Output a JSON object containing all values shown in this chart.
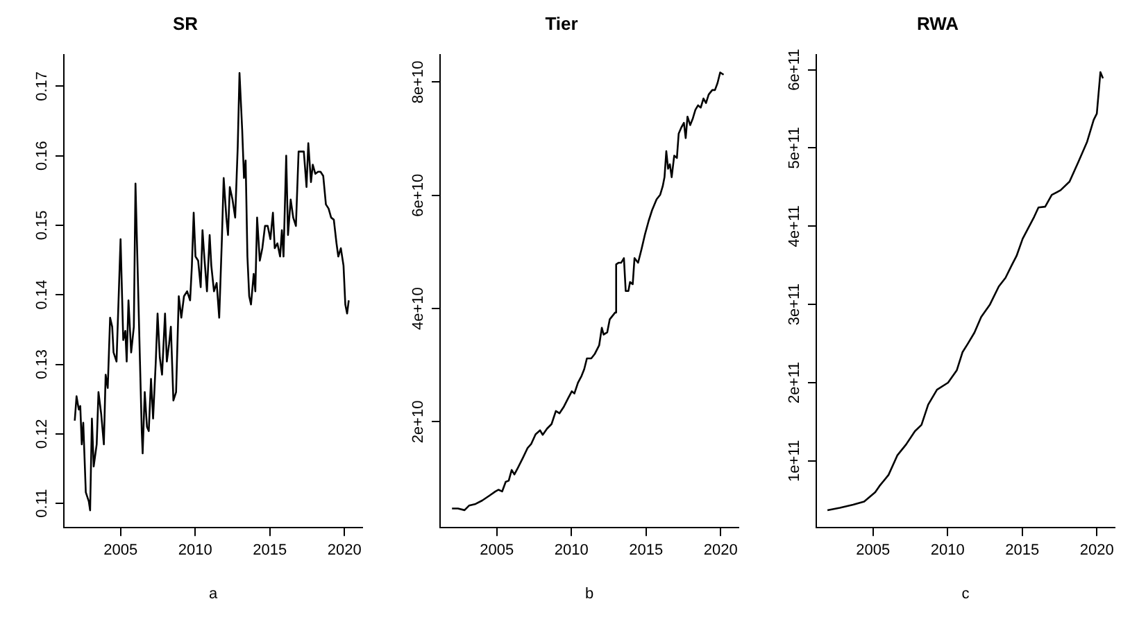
{
  "chart_data": [
    {
      "type": "line",
      "title": "SR",
      "xlabel": "a",
      "color": "#000000",
      "xlim": [
        2001.2,
        2021.2
      ],
      "xticks": [
        2005,
        2010,
        2015,
        2020
      ],
      "ylim": [
        0.1065,
        0.1745
      ],
      "yticks": [
        0.11,
        0.12,
        0.13,
        0.14,
        0.15,
        0.16,
        0.17
      ],
      "x": [
        2001.93,
        2002.05,
        2002.2,
        2002.3,
        2002.4,
        2002.5,
        2002.67,
        2002.87,
        2002.96,
        2003.08,
        2003.2,
        2003.4,
        2003.52,
        2003.7,
        2003.88,
        2004.0,
        2004.14,
        2004.3,
        2004.44,
        2004.53,
        2004.73,
        2005.0,
        2005.18,
        2005.32,
        2005.41,
        2005.53,
        2005.71,
        2005.89,
        2006.0,
        2006.3,
        2006.42,
        2006.48,
        2006.62,
        2006.77,
        2006.89,
        2007.04,
        2007.18,
        2007.36,
        2007.48,
        2007.63,
        2007.78,
        2007.98,
        2008.1,
        2008.25,
        2008.37,
        2008.54,
        2008.72,
        2008.9,
        2009.07,
        2009.25,
        2009.46,
        2009.66,
        2009.78,
        2009.9,
        2010.02,
        2010.2,
        2010.37,
        2010.49,
        2010.61,
        2010.79,
        2010.97,
        2011.08,
        2011.26,
        2011.44,
        2011.61,
        2011.79,
        2011.91,
        2012.09,
        2012.2,
        2012.32,
        2012.5,
        2012.68,
        2012.85,
        2012.97,
        2013.15,
        2013.27,
        2013.38,
        2013.5,
        2013.62,
        2013.74,
        2013.92,
        2014.03,
        2014.15,
        2014.33,
        2014.5,
        2014.68,
        2014.86,
        2015.04,
        2015.21,
        2015.33,
        2015.51,
        2015.69,
        2015.81,
        2015.92,
        2016.1,
        2016.22,
        2016.4,
        2016.57,
        2016.75,
        2016.93,
        2017.1,
        2017.28,
        2017.46,
        2017.58,
        2017.76,
        2017.88,
        2018.05,
        2018.23,
        2018.4,
        2018.58,
        2018.76,
        2018.94,
        2019.11,
        2019.29,
        2019.47,
        2019.59,
        2019.76,
        2019.94,
        2020.06,
        2020.18,
        2020.29
      ],
      "values": [
        0.1219,
        0.1254,
        0.1235,
        0.124,
        0.1185,
        0.1216,
        0.1116,
        0.1103,
        0.109,
        0.1222,
        0.1153,
        0.1185,
        0.126,
        0.1229,
        0.1185,
        0.1285,
        0.1266,
        0.1367,
        0.1354,
        0.1317,
        0.1304,
        0.148,
        0.1335,
        0.1348,
        0.1304,
        0.1392,
        0.1317,
        0.1354,
        0.156,
        0.1304,
        0.1204,
        0.1172,
        0.126,
        0.121,
        0.1204,
        0.1279,
        0.1222,
        0.1304,
        0.1373,
        0.131,
        0.1285,
        0.1373,
        0.1304,
        0.1329,
        0.1354,
        0.1248,
        0.126,
        0.1398,
        0.1367,
        0.1398,
        0.1405,
        0.1392,
        0.1442,
        0.1518,
        0.1455,
        0.1449,
        0.1411,
        0.1493,
        0.1455,
        0.1405,
        0.1486,
        0.1442,
        0.1405,
        0.1417,
        0.1367,
        0.148,
        0.1568,
        0.1511,
        0.1486,
        0.1555,
        0.1537,
        0.1511,
        0.1612,
        0.1719,
        0.1637,
        0.1568,
        0.1593,
        0.1455,
        0.1398,
        0.1386,
        0.143,
        0.1405,
        0.1511,
        0.1449,
        0.1467,
        0.1499,
        0.1499,
        0.148,
        0.1518,
        0.1467,
        0.1474,
        0.1455,
        0.1493,
        0.1455,
        0.16,
        0.1486,
        0.1537,
        0.1511,
        0.1499,
        0.1606,
        0.1606,
        0.1606,
        0.1555,
        0.1618,
        0.1562,
        0.1587,
        0.1574,
        0.1577,
        0.1577,
        0.1571,
        0.153,
        0.1524,
        0.1511,
        0.1508,
        0.1474,
        0.1455,
        0.1467,
        0.1442,
        0.1386,
        0.1373,
        0.1392
      ]
    },
    {
      "type": "line",
      "title": "Tier",
      "xlabel": "b",
      "color": "#000000",
      "xlim": [
        2001.2,
        2021.2
      ],
      "xticks": [
        2005,
        2010,
        2015,
        2020
      ],
      "ylim": [
        1300000000.0,
        84800000000.0
      ],
      "yticks": [
        {
          "value": 20000000000.0,
          "label": "2e+10"
        },
        {
          "value": 40000000000.0,
          "label": "4e+10"
        },
        {
          "value": 60000000000.0,
          "label": "6e+10"
        },
        {
          "value": 80000000000.0,
          "label": "8e+10"
        }
      ],
      "x": [
        2002.0,
        2002.4,
        2002.84,
        2003.14,
        2003.58,
        2004.02,
        2004.47,
        2004.91,
        2005.12,
        2005.36,
        2005.6,
        2005.8,
        2006.0,
        2006.18,
        2006.42,
        2006.78,
        2007.07,
        2007.31,
        2007.6,
        2007.9,
        2008.08,
        2008.37,
        2008.67,
        2008.96,
        2009.2,
        2009.5,
        2009.79,
        2010.03,
        2010.2,
        2010.44,
        2010.68,
        2010.86,
        2011.04,
        2011.33,
        2011.57,
        2011.86,
        2012.04,
        2012.16,
        2012.4,
        2012.57,
        2012.81,
        2012.93,
        2013.0,
        2013.17,
        2013.34,
        2013.52,
        2013.64,
        2013.82,
        2013.93,
        2014.11,
        2014.23,
        2014.47,
        2014.7,
        2014.94,
        2015.18,
        2015.41,
        2015.71,
        2015.95,
        2016.12,
        2016.24,
        2016.36,
        2016.48,
        2016.6,
        2016.72,
        2016.89,
        2017.07,
        2017.19,
        2017.37,
        2017.54,
        2017.66,
        2017.78,
        2017.96,
        2018.14,
        2018.31,
        2018.49,
        2018.67,
        2018.85,
        2019.02,
        2019.2,
        2019.44,
        2019.62,
        2019.79,
        2019.97,
        2020.2
      ],
      "values": [
        4700000000.0,
        4700000000.0,
        4400000000.0,
        5200000000.0,
        5500000000.0,
        6100000000.0,
        6900000000.0,
        7700000000.0,
        8000000000.0,
        7700000000.0,
        9400000000.0,
        9600000000.0,
        11500000000.0,
        10700000000.0,
        11900000000.0,
        13800000000.0,
        15400000000.0,
        16100000000.0,
        17800000000.0,
        18500000000.0,
        17700000000.0,
        18800000000.0,
        19600000000.0,
        21900000000.0,
        21500000000.0,
        22700000000.0,
        24200000000.0,
        25400000000.0,
        25000000000.0,
        26900000000.0,
        28100000000.0,
        29300000000.0,
        31200000000.0,
        31200000000.0,
        32000000000.0,
        33500000000.0,
        36600000000.0,
        35400000000.0,
        35800000000.0,
        38100000000.0,
        38900000000.0,
        39300000000.0,
        47800000000.0,
        48100000000.0,
        48100000000.0,
        48900000000.0,
        43100000000.0,
        43100000000.0,
        44700000000.0,
        44300000000.0,
        48900000000.0,
        48100000000.0,
        50500000000.0,
        53200000000.0,
        55500000000.0,
        57400000000.0,
        59300000000.0,
        60100000000.0,
        61600000000.0,
        63200000000.0,
        67800000000.0,
        64700000000.0,
        65500000000.0,
        63200000000.0,
        67000000000.0,
        66600000000.0,
        70900000000.0,
        72000000000.0,
        72800000000.0,
        70100000000.0,
        73900000000.0,
        72400000000.0,
        73600000000.0,
        75100000000.0,
        75900000000.0,
        75500000000.0,
        77100000000.0,
        76300000000.0,
        77800000000.0,
        78600000000.0,
        78600000000.0,
        79800000000.0,
        81700000000.0,
        81300000000.0
      ]
    },
    {
      "type": "line",
      "title": "RWA",
      "xlabel": "c",
      "color": "#000000",
      "xlim": [
        2001.2,
        2021.2
      ],
      "xticks": [
        2005,
        2010,
        2015,
        2020
      ],
      "ylim": [
        14600000000.0,
        619000000000.0
      ],
      "yticks": [
        {
          "value": 100000000000.0,
          "label": "1e+11"
        },
        {
          "value": 200000000000.0,
          "label": "2e+11"
        },
        {
          "value": 300000000000.0,
          "label": "3e+11"
        },
        {
          "value": 400000000000.0,
          "label": "4e+11"
        },
        {
          "value": 500000000000.0,
          "label": "5e+11"
        },
        {
          "value": 600000000000.0,
          "label": "6e+11"
        }
      ],
      "x": [
        2001.95,
        2002.78,
        2003.67,
        2004.41,
        2005.15,
        2005.44,
        2006.04,
        2006.63,
        2007.22,
        2007.81,
        2008.25,
        2008.7,
        2009.29,
        2010.03,
        2010.62,
        2011.0,
        2011.36,
        2011.8,
        2012.25,
        2012.84,
        2013.43,
        2013.88,
        2014.32,
        2014.62,
        2015.03,
        2015.36,
        2015.8,
        2016.09,
        2016.54,
        2016.98,
        2017.57,
        2018.17,
        2018.76,
        2019.35,
        2019.79,
        2020.0,
        2020.24,
        2020.41
      ],
      "values": [
        37000000000.0,
        40000000000.0,
        44000000000.0,
        48000000000.0,
        60000000000.0,
        68000000000.0,
        82000000000.0,
        107000000000.0,
        121000000000.0,
        138000000000.0,
        146000000000.0,
        172000000000.0,
        191000000000.0,
        200000000000.0,
        216000000000.0,
        239000000000.0,
        250000000000.0,
        264000000000.0,
        284000000000.0,
        300000000000.0,
        323000000000.0,
        334000000000.0,
        351000000000.0,
        362000000000.0,
        384000000000.0,
        396000000000.0,
        412000000000.0,
        424000000000.0,
        425000000000.0,
        440000000000.0,
        446000000000.0,
        457000000000.0,
        482000000000.0,
        508000000000.0,
        536000000000.0,
        544000000000.0,
        597000000000.0,
        589000000000.0
      ]
    }
  ]
}
